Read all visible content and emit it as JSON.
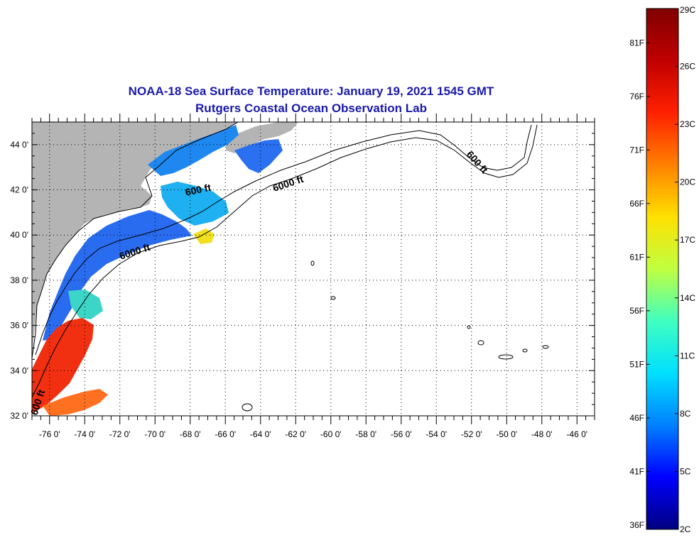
{
  "title": "NOAA-18 Sea Surface Temperature:  January 19, 2021 1545 GMT",
  "subtitle": "Rutgers Coastal Ocean Observation Lab",
  "map": {
    "lon_range": [
      -77,
      -45
    ],
    "lat_range": [
      32,
      45
    ],
    "lat_ticks": [
      {
        "value": 32,
        "label": "32 0'"
      },
      {
        "value": 34,
        "label": "34 0'"
      },
      {
        "value": 36,
        "label": "36 0'"
      },
      {
        "value": 38,
        "label": "38 0'"
      },
      {
        "value": 40,
        "label": "40 0'"
      },
      {
        "value": 42,
        "label": "42 0'"
      },
      {
        "value": 44,
        "label": "44 0'"
      }
    ],
    "lon_ticks": [
      {
        "value": -76,
        "label": "-76 0'"
      },
      {
        "value": -74,
        "label": "-74 0'"
      },
      {
        "value": -72,
        "label": "-72 0'"
      },
      {
        "value": -70,
        "label": "-70 0'"
      },
      {
        "value": -68,
        "label": "-68 0'"
      },
      {
        "value": -66,
        "label": "-66 0'"
      },
      {
        "value": -64,
        "label": "-64 0'"
      },
      {
        "value": -62,
        "label": "-62 0'"
      },
      {
        "value": -60,
        "label": "-60 0'"
      },
      {
        "value": -58,
        "label": "-58 0'"
      },
      {
        "value": -56,
        "label": "-56 0'"
      },
      {
        "value": -54,
        "label": "-54 0'"
      },
      {
        "value": -52,
        "label": "-52 0'"
      },
      {
        "value": -50,
        "label": "-50 0'"
      },
      {
        "value": -48,
        "label": "-48 0'"
      },
      {
        "value": -46,
        "label": "-46 0'"
      }
    ],
    "grid": "dotted",
    "contour_labels": [
      "600 ft",
      "6000 ft",
      "6000 ft",
      "600 ft",
      "600 ft"
    ],
    "colors": {
      "land": "#b4b4b4",
      "title": "#1a1aa8"
    }
  },
  "colorbar": {
    "celsius_range": [
      2,
      29
    ],
    "celsius_labels": [
      "29C",
      "26C",
      "23C",
      "20C",
      "17C",
      "14C",
      "11C",
      "8C",
      "5C",
      "2C"
    ],
    "fahrenheit_labels": [
      "81F",
      "76F",
      "71F",
      "66F",
      "61F",
      "56F",
      "51F",
      "46F",
      "41F",
      "36F"
    ],
    "colors": [
      "#000080",
      "#0000ff",
      "#0080ff",
      "#00e0ff",
      "#40ffc0",
      "#c0ff40",
      "#ffe000",
      "#ff8000",
      "#ff2000",
      "#c00000",
      "#800000"
    ]
  }
}
